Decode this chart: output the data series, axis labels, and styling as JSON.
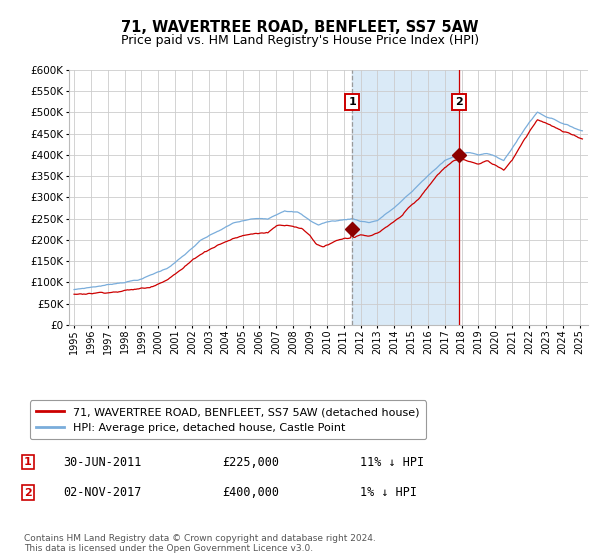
{
  "title": "71, WAVERTREE ROAD, BENFLEET, SS7 5AW",
  "subtitle": "Price paid vs. HM Land Registry's House Price Index (HPI)",
  "legend_line1": "71, WAVERTREE ROAD, BENFLEET, SS7 5AW (detached house)",
  "legend_line2": "HPI: Average price, detached house, Castle Point",
  "annotation1_date": "30-JUN-2011",
  "annotation1_price": "£225,000",
  "annotation1_hpi": "11% ↓ HPI",
  "annotation1_year": 2011.5,
  "annotation1_value": 225000,
  "annotation2_date": "02-NOV-2017",
  "annotation2_price": "£400,000",
  "annotation2_hpi": "1% ↓ HPI",
  "annotation2_year": 2017.84,
  "annotation2_value": 400000,
  "ylim": [
    0,
    600000
  ],
  "xlim_start": 1994.7,
  "xlim_end": 2025.5,
  "ytick_step": 50000,
  "footer": "Contains HM Land Registry data © Crown copyright and database right 2024.\nThis data is licensed under the Open Government Licence v3.0.",
  "red_color": "#cc0000",
  "blue_color": "#7aaddb",
  "shading_color": "#daeaf7",
  "grid_color": "#cccccc",
  "bg_color": "#ffffff",
  "dark_red": "#8b0000"
}
